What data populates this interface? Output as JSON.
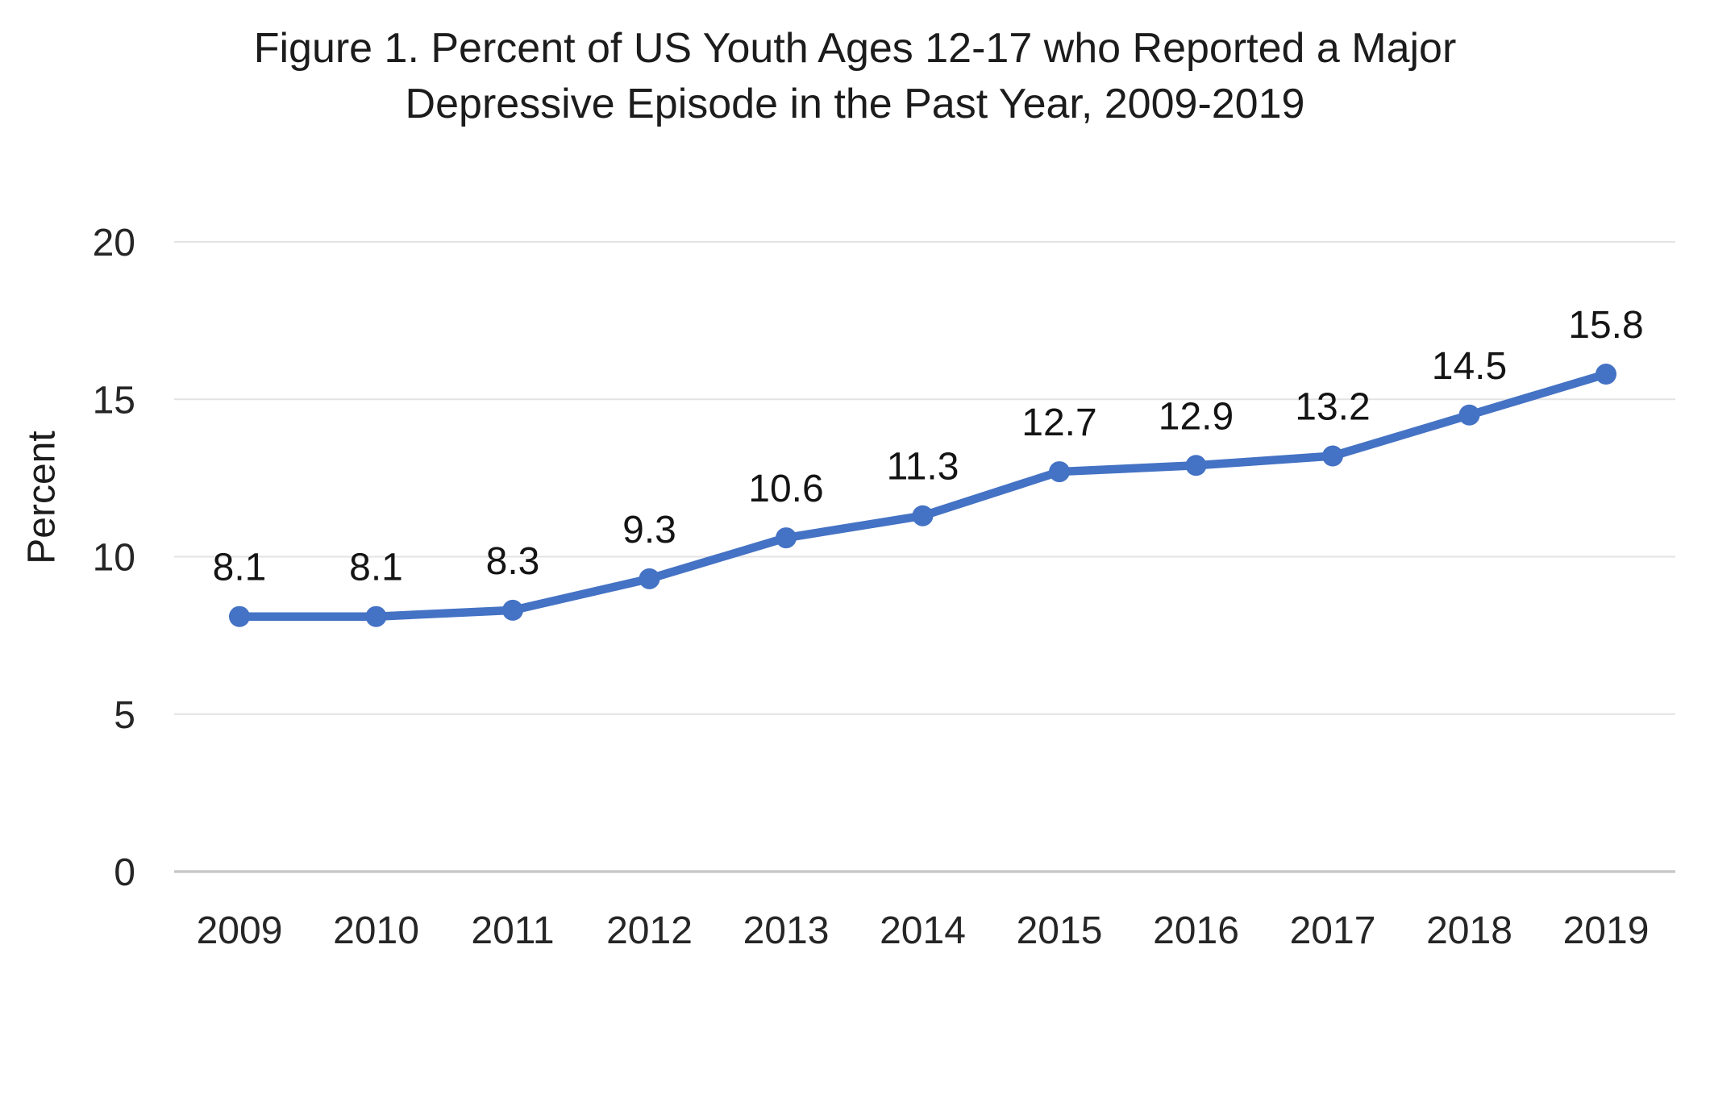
{
  "figure": {
    "title_lines": [
      "Figure 1. Percent of US Youth Ages 12-17 who Reported a Major",
      "Depressive Episode in the Past Year, 2009-2019"
    ],
    "y_axis_title": "Percent"
  },
  "chart_data": {
    "type": "line",
    "title": "Figure 1. Percent of US Youth Ages 12-17 who Reported a Major Depressive Episode in the Past Year, 2009-2019",
    "xlabel": "",
    "ylabel": "Percent",
    "categories": [
      "2009",
      "2010",
      "2011",
      "2012",
      "2013",
      "2014",
      "2015",
      "2016",
      "2017",
      "2018",
      "2019"
    ],
    "values": [
      8.1,
      8.1,
      8.3,
      9.3,
      10.6,
      11.3,
      12.7,
      12.9,
      13.2,
      14.5,
      15.8
    ],
    "data_labels": [
      "8.1",
      "8.1",
      "8.3",
      "9.3",
      "10.6",
      "11.3",
      "12.7",
      "12.9",
      "13.2",
      "14.5",
      "15.8"
    ],
    "y_ticks": [
      0,
      5,
      10,
      15,
      20
    ],
    "ylim": [
      0,
      20
    ],
    "grid": true,
    "legend": "none",
    "series_color": "#4472C4",
    "marker": "circle"
  },
  "colors": {
    "line": "#4472C4",
    "gridline": "#E3E3E3",
    "axis_line": "#C8C8C8",
    "text": "#1c1c1c"
  }
}
